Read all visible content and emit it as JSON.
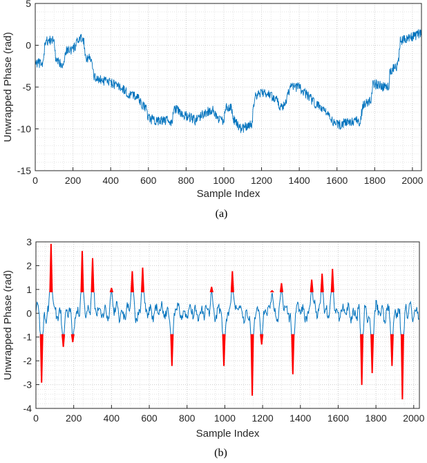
{
  "chart_data": [
    {
      "type": "line",
      "id": "a",
      "caption": "(a)",
      "xlabel": "Sample Index",
      "ylabel": "Unwrapped Phase (rad)",
      "xlim": [
        0,
        2048
      ],
      "ylim": [
        -15,
        5
      ],
      "grid": true,
      "xticks": [
        0,
        200,
        400,
        600,
        800,
        1000,
        1200,
        1400,
        1600,
        1800,
        2000
      ],
      "yticks": [
        5,
        0,
        -5,
        -10,
        -15
      ],
      "color": "#0072BD",
      "noise_amplitude": 0.6,
      "series": [
        {
          "name": "unwrapped phase",
          "x": [
            0,
            40,
            48,
            52,
            100,
            105,
            110,
            150,
            158,
            165,
            200,
            215,
            230,
            255,
            262,
            268,
            290,
            300,
            310,
            350,
            400,
            430,
            470,
            500,
            540,
            560,
            590,
            600,
            650,
            700,
            720,
            740,
            800,
            850,
            870,
            900,
            940,
            970,
            1000,
            1010,
            1040,
            1050,
            1080,
            1100,
            1120,
            1150,
            1158,
            1165,
            1200,
            1250,
            1280,
            1300,
            1330,
            1350,
            1400,
            1420,
            1460,
            1480,
            1520,
            1550,
            1580,
            1620,
            1650,
            1700,
            1720,
            1740,
            1780,
            1790,
            1850,
            1875,
            1880,
            1920,
            1928,
            1935,
            1980,
            2000,
            2048
          ],
          "y": [
            -2,
            -2.3,
            -1,
            0.5,
            0.6,
            -0.5,
            -2,
            -2.2,
            -1,
            -0.6,
            -0.5,
            0,
            0.6,
            0.9,
            -0.5,
            -1.5,
            -1.5,
            -2,
            -3.8,
            -4.2,
            -4.5,
            -4.8,
            -5.3,
            -6,
            -6,
            -7,
            -7.5,
            -8.8,
            -9,
            -9,
            -9.4,
            -7.6,
            -8.4,
            -9,
            -8.6,
            -8.1,
            -7.6,
            -8.9,
            -9,
            -7.2,
            -7.5,
            -8.8,
            -9.8,
            -10,
            -9.6,
            -9.5,
            -7,
            -6.2,
            -5.6,
            -6,
            -6.5,
            -7.4,
            -7,
            -5,
            -5,
            -5.5,
            -6.4,
            -7,
            -7.5,
            -8,
            -9.4,
            -9.5,
            -9.1,
            -9,
            -9.4,
            -7,
            -6.6,
            -4.6,
            -5,
            -5,
            -3,
            -2.6,
            -1.5,
            0.5,
            1,
            1,
            1.5
          ]
        }
      ]
    },
    {
      "type": "line",
      "id": "b",
      "caption": "(b)",
      "xlabel": "Sample Index",
      "ylabel": "Unwrapped Phase (rad)",
      "xlim": [
        0,
        2030
      ],
      "ylim": [
        -4,
        3
      ],
      "grid": true,
      "xticks": [
        0,
        200,
        400,
        600,
        800,
        1000,
        1200,
        1400,
        1600,
        1800,
        2000
      ],
      "yticks": [
        3,
        2,
        1,
        0,
        -1,
        -2,
        -3,
        -4
      ],
      "colors": {
        "signal": "#0072BD",
        "highlight": "#FF0000"
      },
      "baseline_amplitude": 0.35,
      "highlight_threshold": 0.9,
      "spikes": {
        "x": [
          30,
          80,
          145,
          195,
          245,
          300,
          400,
          510,
          565,
          720,
          930,
          995,
          1040,
          1145,
          1195,
          1250,
          1300,
          1360,
          1460,
          1515,
          1570,
          1725,
          1780,
          1885,
          1940
        ],
        "peak": [
          -2.9,
          2.9,
          -1.4,
          -1.2,
          2.6,
          2.3,
          1.05,
          1.75,
          1.9,
          -2.2,
          1.1,
          -2.2,
          1.75,
          -3.45,
          -1.3,
          0.95,
          1.25,
          -2.55,
          1.4,
          1.65,
          1.85,
          -3.0,
          -2.5,
          -2.2,
          -3.6
        ]
      }
    }
  ]
}
